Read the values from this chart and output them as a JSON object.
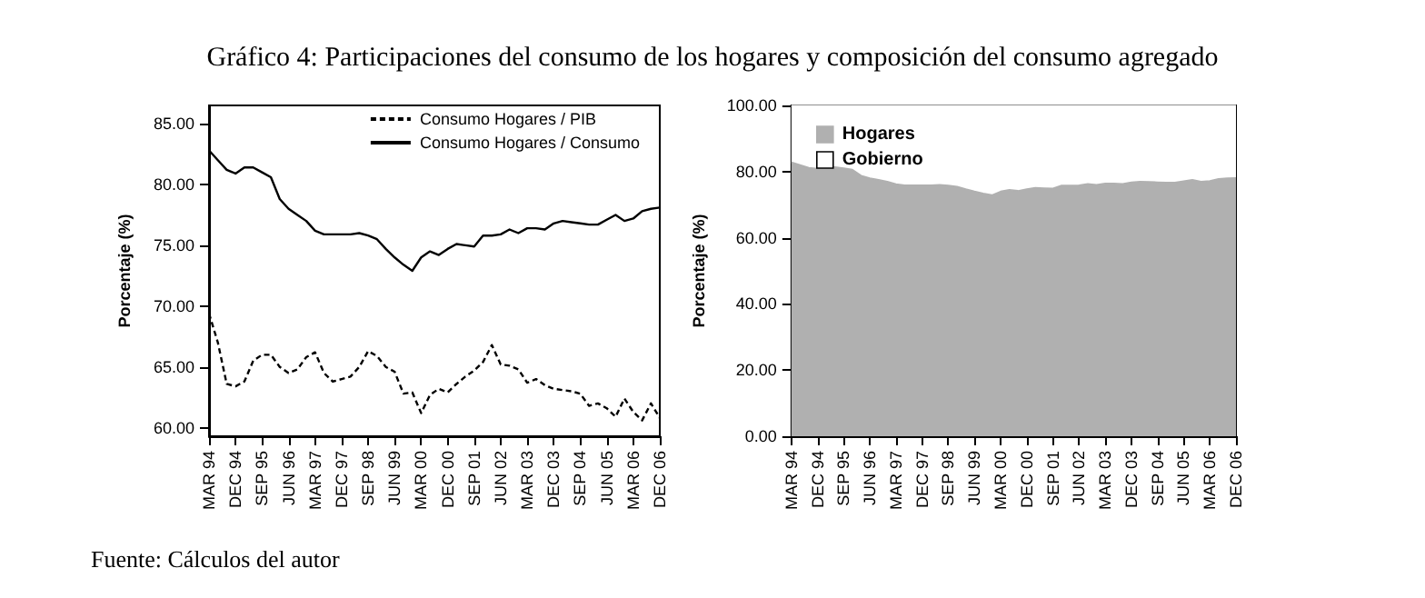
{
  "chart_data": [
    {
      "type": "line",
      "title": "Gráfico 4: Participaciones del consumo de los hogares y composición del consumo agregado",
      "annotations": [
        "Fuente: Cálculos del autor"
      ],
      "ylabel": "Porcentaje (%)",
      "categories": [
        "MAR 94",
        null,
        null,
        "DEC 94",
        null,
        null,
        "SEP 95",
        null,
        null,
        "JUN 96",
        null,
        null,
        "MAR 97",
        null,
        null,
        "DEC 97",
        null,
        null,
        "SEP 98",
        null,
        null,
        "JUN 99",
        null,
        null,
        "MAR 00",
        null,
        null,
        "DEC 00",
        null,
        null,
        "SEP 01",
        null,
        null,
        "JUN 02",
        null,
        null,
        "MAR 03",
        null,
        null,
        "DEC 03",
        null,
        null,
        "SEP 04",
        null,
        null,
        "JUN 05",
        null,
        null,
        "MAR 06",
        null,
        null,
        "DEC 06"
      ],
      "series": [
        {
          "name": "Consumo Hogares / PIB",
          "color": "#000000",
          "line_style": "dashed",
          "values": [
            69.4,
            67.0,
            63.6,
            63.4,
            63.8,
            65.5,
            66.0,
            66.0,
            65.0,
            64.5,
            64.8,
            65.8,
            66.2,
            64.5,
            63.8,
            64.0,
            64.2,
            65.0,
            66.3,
            65.9,
            65.0,
            64.6,
            62.8,
            62.9,
            61.2,
            62.7,
            63.2,
            62.9,
            63.6,
            64.2,
            64.7,
            65.4,
            66.8,
            65.2,
            65.1,
            64.8,
            63.7,
            64.0,
            63.5,
            63.2,
            63.1,
            63.0,
            62.8,
            61.8,
            62.0,
            61.6,
            60.9,
            62.4,
            61.3,
            60.6,
            62.0,
            60.8
          ]
        },
        {
          "name": "Consumo Hogares / Consumo",
          "color": "#000000",
          "line_style": "solid",
          "values": [
            82.8,
            82.0,
            81.2,
            80.9,
            81.4,
            81.4,
            81.0,
            80.6,
            78.8,
            78.0,
            77.5,
            77.0,
            76.2,
            75.9,
            75.9,
            75.9,
            75.9,
            76.0,
            75.8,
            75.5,
            74.7,
            74.0,
            73.4,
            72.9,
            74.0,
            74.5,
            74.2,
            74.7,
            75.1,
            75.0,
            74.9,
            75.8,
            75.8,
            75.9,
            76.3,
            76.0,
            76.4,
            76.4,
            76.3,
            76.8,
            77.0,
            76.9,
            76.8,
            76.7,
            76.7,
            77.1,
            77.5,
            77.0,
            77.2,
            77.8,
            78.0,
            78.1
          ]
        }
      ],
      "ylim": [
        59.3,
        86.5
      ],
      "yticks": [
        {
          "value": 60,
          "label": "60.00"
        },
        {
          "value": 65,
          "label": "65.00"
        },
        {
          "value": 70,
          "label": "70.00"
        },
        {
          "value": 75,
          "label": "75.00"
        },
        {
          "value": 80,
          "label": "80.00"
        },
        {
          "value": 85,
          "label": "85.00"
        }
      ],
      "legend": "top right",
      "marker": "none"
    },
    {
      "type": "area",
      "stacked": true,
      "ylabel": "Porcentaje (%)",
      "categories": [
        "MAR 94",
        null,
        null,
        "DEC 94",
        null,
        null,
        "SEP 95",
        null,
        null,
        "JUN 96",
        null,
        null,
        "MAR 97",
        null,
        null,
        "DEC 97",
        null,
        null,
        "SEP 98",
        null,
        null,
        "JUN 99",
        null,
        null,
        "MAR 00",
        null,
        null,
        "DEC 00",
        null,
        null,
        "SEP 01",
        null,
        null,
        "JUN 02",
        null,
        null,
        "MAR 03",
        null,
        null,
        "DEC 03",
        null,
        null,
        "SEP 04",
        null,
        null,
        "JUN 05",
        null,
        null,
        "MAR 06",
        null,
        null,
        "DEC 06"
      ],
      "series": [
        {
          "name": "Hogares",
          "color": "#b0b0b0",
          "values": [
            82.8,
            82.0,
            81.2,
            80.9,
            81.4,
            81.4,
            81.0,
            80.6,
            78.8,
            78.0,
            77.5,
            77.0,
            76.2,
            75.9,
            75.9,
            75.9,
            75.9,
            76.0,
            75.8,
            75.5,
            74.7,
            74.0,
            73.4,
            72.9,
            74.0,
            74.5,
            74.2,
            74.7,
            75.1,
            75.0,
            74.9,
            75.8,
            75.8,
            75.9,
            76.3,
            76.0,
            76.4,
            76.4,
            76.3,
            76.8,
            77.0,
            76.9,
            76.8,
            76.7,
            76.7,
            77.1,
            77.5,
            77.0,
            77.2,
            77.8,
            78.0,
            78.1
          ]
        },
        {
          "name": "Gobierno",
          "color": "#ffffff",
          "values": [
            17.2,
            18.0,
            18.8,
            19.1,
            18.6,
            18.6,
            19.0,
            19.4,
            21.2,
            22.0,
            22.5,
            23.0,
            23.8,
            24.1,
            24.1,
            24.1,
            24.1,
            24.0,
            24.2,
            24.5,
            25.3,
            26.0,
            26.6,
            27.1,
            26.0,
            25.5,
            25.8,
            25.3,
            24.9,
            25.0,
            25.1,
            24.2,
            24.2,
            24.1,
            23.7,
            24.0,
            23.6,
            23.6,
            23.7,
            23.2,
            23.0,
            23.1,
            23.2,
            23.3,
            23.3,
            22.9,
            22.5,
            23.0,
            22.8,
            22.2,
            22.0,
            21.9
          ]
        }
      ],
      "ylim": [
        0,
        100
      ],
      "yticks": [
        {
          "value": 0,
          "label": "0.00"
        },
        {
          "value": 20,
          "label": "20.00"
        },
        {
          "value": 40,
          "label": "40.00"
        },
        {
          "value": 60,
          "label": "60.00"
        },
        {
          "value": 80,
          "label": "80.00"
        },
        {
          "value": 100,
          "label": "100.00"
        }
      ],
      "legend": "top left"
    }
  ]
}
